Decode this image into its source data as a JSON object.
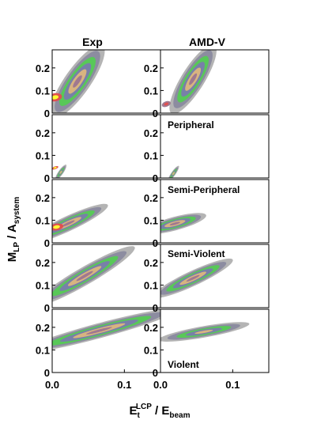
{
  "chart_data": {
    "type": "heatmap",
    "columns": [
      "Exp",
      "AMD-V"
    ],
    "rows": [
      {
        "label": ""
      },
      {
        "label": "Peripheral"
      },
      {
        "label": "Semi-Peripheral"
      },
      {
        "label": "Semi-Violent"
      },
      {
        "label": "Violent"
      }
    ],
    "y_ticks": [
      "0.2",
      "0.1",
      "0"
    ],
    "x_ticks": [
      "0.0",
      "0.1"
    ],
    "ylim": [
      0,
      0.28
    ],
    "xlim": [
      0,
      0.15
    ],
    "xlabel": {
      "main": "E",
      "sub": "t",
      "sup": "LCP",
      "rest": " / E",
      "rest_sub": "beam"
    },
    "ylabel": {
      "main": "M",
      "sub": "LP",
      "rest": " / A",
      "rest_sub": "system"
    },
    "contour_colors": [
      "#b4b4b4",
      "#8c8ca0",
      "#58c858",
      "#7880a8",
      "#d8b480",
      "#a07890",
      "#e05050",
      "#ffff30"
    ],
    "blobs": [
      [
        {
          "x": 0.035,
          "y": 0.14,
          "rx": 0.038,
          "ry": 0.095,
          "rot": -55,
          "levels": 6
        },
        {
          "x": 0.004,
          "y": 0.07,
          "rx": 0.006,
          "ry": 0.03,
          "rot": -10,
          "levels": 2,
          "start": 6
        }
      ],
      [
        {
          "x": 0.045,
          "y": 0.15,
          "rx": 0.035,
          "ry": 0.085,
          "rot": -58,
          "levels": 6
        },
        {
          "x": 0.008,
          "y": 0.04,
          "rx": 0.004,
          "ry": 0.02,
          "rot": -20,
          "levels": 2,
          "start": 5
        }
      ],
      [
        {
          "x": 0.012,
          "y": 0.025,
          "rx": 0.008,
          "ry": 0.018,
          "rot": -55,
          "levels": 5
        },
        {
          "x": 0.004,
          "y": 0.045,
          "rx": 0.003,
          "ry": 0.01,
          "rot": -20,
          "levels": 2,
          "start": 6
        }
      ],
      [
        {
          "x": 0.018,
          "y": 0.02,
          "rx": 0.008,
          "ry": 0.016,
          "rot": -55,
          "levels": 5
        }
      ],
      [
        {
          "x": 0.022,
          "y": 0.085,
          "rx": 0.038,
          "ry": 0.055,
          "rot": -25,
          "levels": 6
        },
        {
          "x": 0.006,
          "y": 0.07,
          "rx": 0.006,
          "ry": 0.025,
          "rot": -10,
          "levels": 2,
          "start": 6
        }
      ],
      [
        {
          "x": 0.02,
          "y": 0.085,
          "rx": 0.028,
          "ry": 0.05,
          "rot": -15,
          "levels": 6
        }
      ],
      [
        {
          "x": 0.045,
          "y": 0.14,
          "rx": 0.05,
          "ry": 0.065,
          "rot": -30,
          "levels": 6
        }
      ],
      [
        {
          "x": 0.045,
          "y": 0.13,
          "rx": 0.038,
          "ry": 0.055,
          "rot": -25,
          "levels": 6
        }
      ],
      [
        {
          "x": 0.065,
          "y": 0.185,
          "rx": 0.07,
          "ry": 0.055,
          "rot": -15,
          "levels": 6
        }
      ],
      [
        {
          "x": 0.06,
          "y": 0.18,
          "rx": 0.04,
          "ry": 0.042,
          "rot": -10,
          "levels": 5
        }
      ]
    ]
  }
}
